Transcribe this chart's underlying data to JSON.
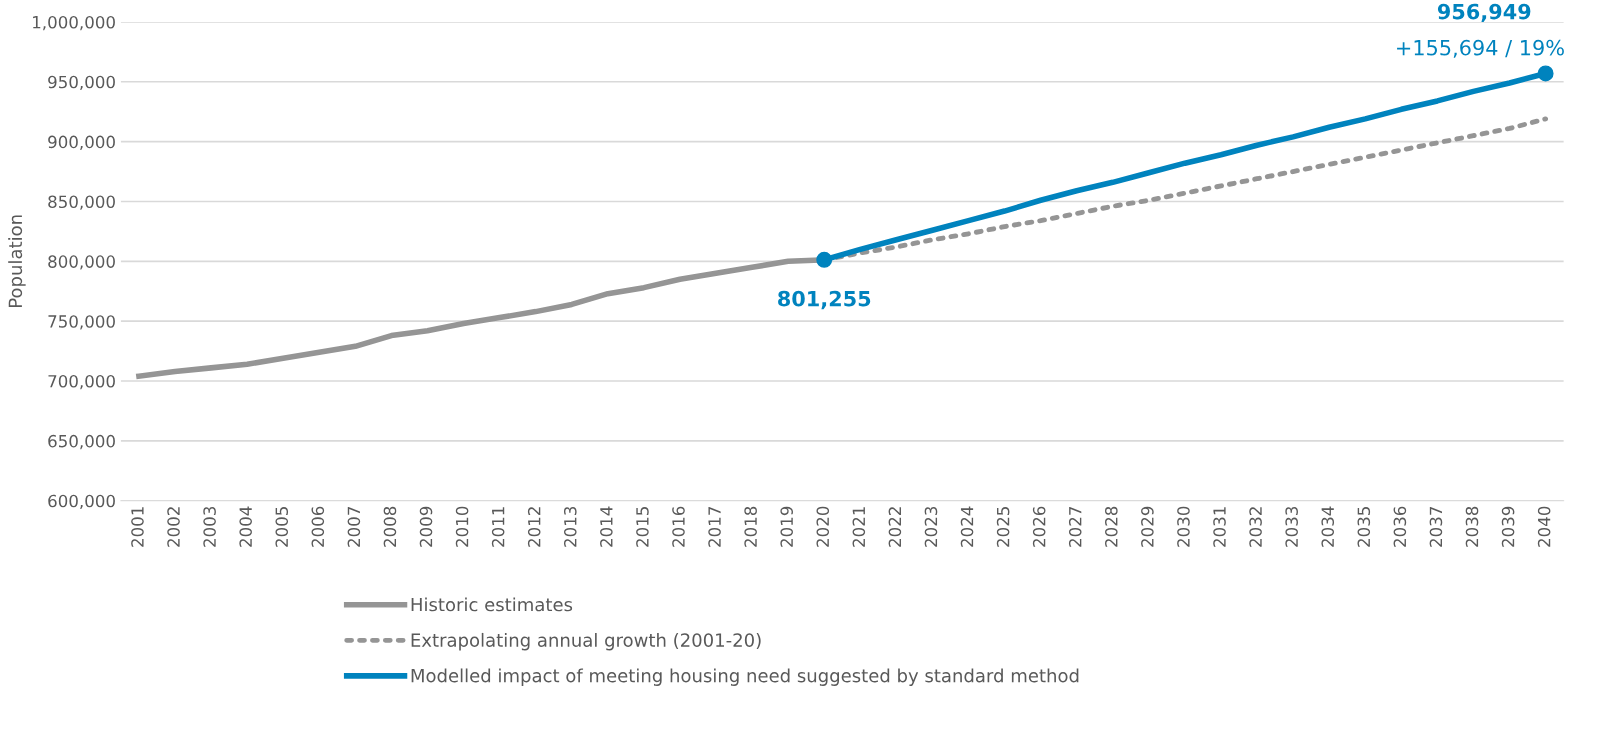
{
  "chart_data": {
    "type": "line",
    "ylabel": "Population",
    "categories": [
      "2001",
      "2002",
      "2003",
      "2004",
      "2005",
      "2006",
      "2007",
      "2008",
      "2009",
      "2010",
      "2011",
      "2012",
      "2013",
      "2014",
      "2015",
      "2016",
      "2017",
      "2018",
      "2019",
      "2020",
      "2021",
      "2022",
      "2023",
      "2024",
      "2025",
      "2026",
      "2027",
      "2028",
      "2029",
      "2030",
      "2031",
      "2032",
      "2033",
      "2034",
      "2035",
      "2036",
      "2037",
      "2038",
      "2039",
      "2040"
    ],
    "ylim": [
      600000,
      1000000
    ],
    "yticks": [
      {
        "value": 600000,
        "label": "600,000"
      },
      {
        "value": 650000,
        "label": "650,000"
      },
      {
        "value": 700000,
        "label": "700,000"
      },
      {
        "value": 750000,
        "label": "750,000"
      },
      {
        "value": 800000,
        "label": "800,000"
      },
      {
        "value": 850000,
        "label": "850,000"
      },
      {
        "value": 900000,
        "label": "900,000"
      },
      {
        "value": 950000,
        "label": "950,000"
      },
      {
        "value": 1000000,
        "label": "1,000,000"
      }
    ],
    "grid": "y",
    "legend": "bottom",
    "series": [
      {
        "name": "Historic estimates",
        "color": "#959595",
        "line_style": "solid",
        "values": [
          704000,
          708000,
          711000,
          714000,
          719000,
          724000,
          729000,
          738000,
          742000,
          748000,
          753000,
          758000,
          764000,
          773000,
          778000,
          785000,
          790000,
          795000,
          800000,
          801255,
          null,
          null,
          null,
          null,
          null,
          null,
          null,
          null,
          null,
          null,
          null,
          null,
          null,
          null,
          null,
          null,
          null,
          null,
          null,
          null
        ]
      },
      {
        "name": "Extrapolating annual growth (2001-20)",
        "color": "#959595",
        "line_style": "dotted",
        "values": [
          null,
          null,
          null,
          null,
          null,
          null,
          null,
          null,
          null,
          null,
          null,
          null,
          null,
          null,
          null,
          null,
          null,
          null,
          null,
          801255,
          807000,
          812000,
          818000,
          823000,
          829000,
          834000,
          840000,
          846000,
          851000,
          857000,
          863000,
          869000,
          875000,
          881000,
          887000,
          893000,
          899000,
          905000,
          911000,
          919000
        ]
      },
      {
        "name": "Modelled impact of meeting housing need suggested by standard method",
        "color": "#0083be",
        "line_style": "solid",
        "values": [
          null,
          null,
          null,
          null,
          null,
          null,
          null,
          null,
          null,
          null,
          null,
          null,
          null,
          null,
          null,
          null,
          null,
          null,
          null,
          801255,
          810000,
          818000,
          826000,
          834000,
          842000,
          851000,
          859000,
          866000,
          874000,
          882000,
          889000,
          897000,
          904000,
          912000,
          919000,
          927000,
          934000,
          942000,
          949000,
          956949
        ]
      },
      {
        "type": "scatter",
        "color": "#0083be",
        "marker": "circle",
        "values": [
          null,
          null,
          null,
          null,
          null,
          null,
          null,
          null,
          null,
          null,
          null,
          null,
          null,
          null,
          null,
          null,
          null,
          null,
          null,
          801255,
          null,
          null,
          null,
          null,
          null,
          null,
          null,
          null,
          null,
          null,
          null,
          null,
          null,
          null,
          null,
          null,
          null,
          null,
          null,
          956949
        ]
      }
    ],
    "annotations": [
      {
        "text": "801,255",
        "x": "2020",
        "y": 801255
      },
      {
        "text": "956,949",
        "x": "2040",
        "y": 956949
      },
      {
        "text": "+155,694 / 19%",
        "x": "2040",
        "y": 956949
      }
    ]
  }
}
